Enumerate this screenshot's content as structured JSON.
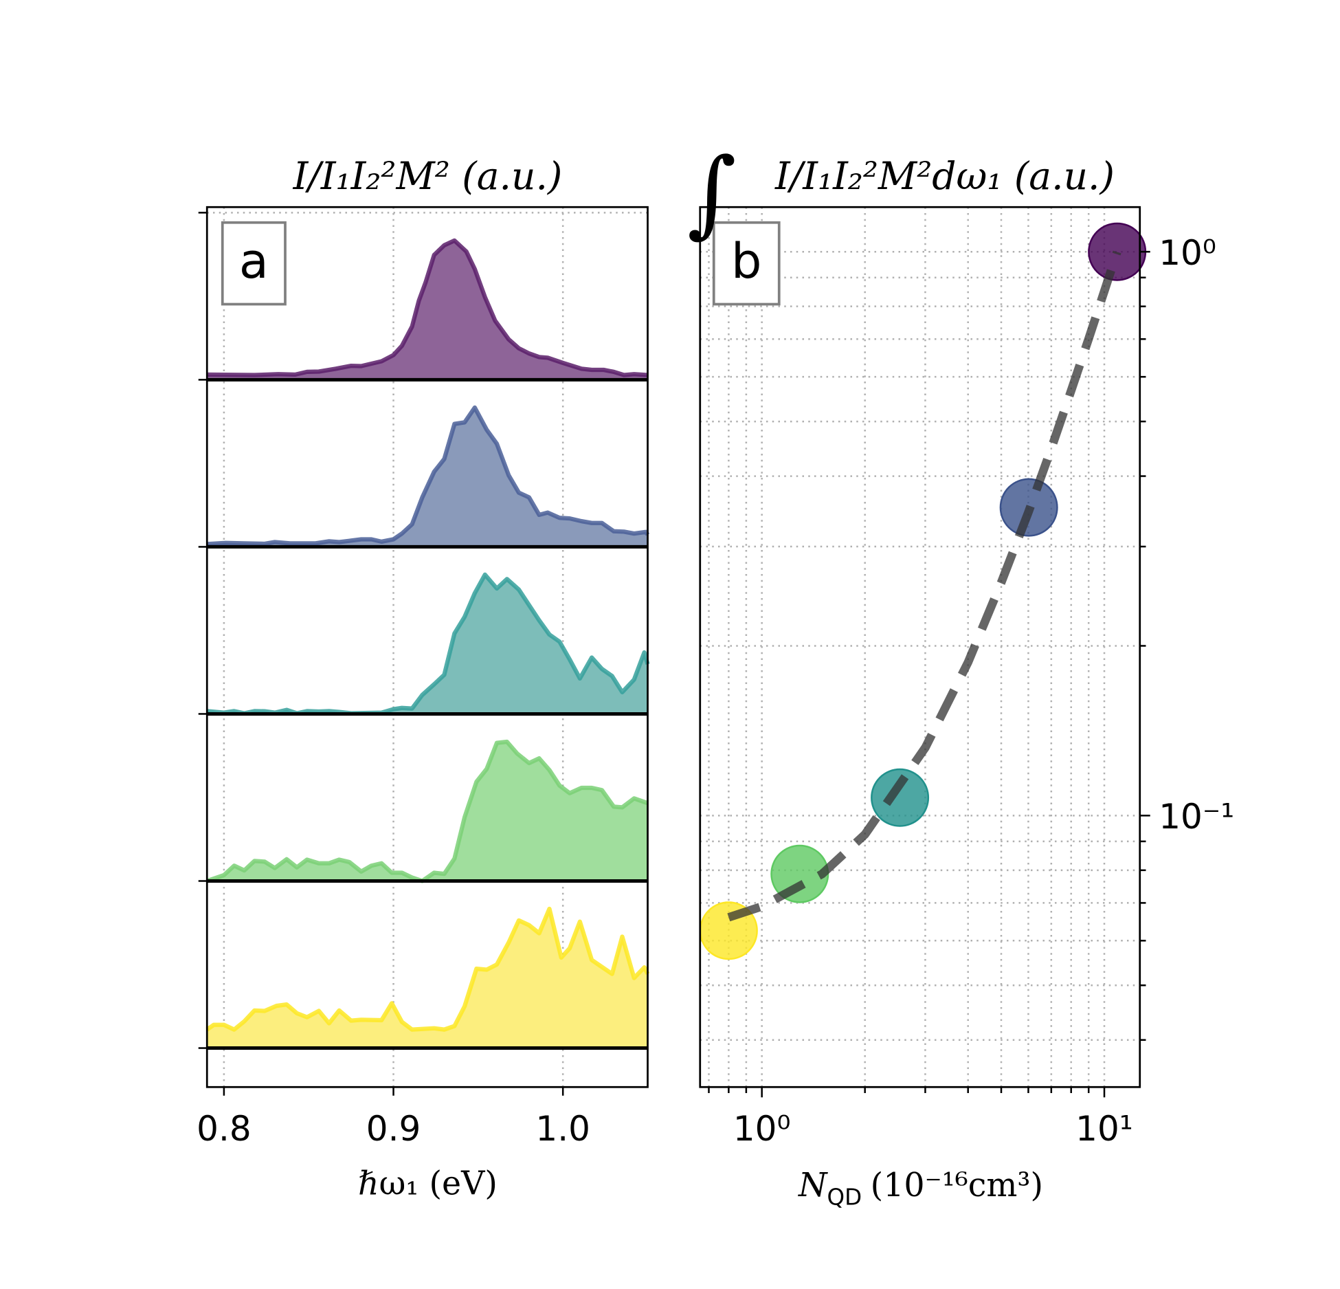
{
  "chart_data": [
    {
      "type": "area",
      "panel_label": "a",
      "title": "I/I₁I₂²M² (a.u.)",
      "xlabel": "ℏω₁ (eV)",
      "ylabel": "",
      "xlim": [
        0.79,
        1.05
      ],
      "ylim": [
        -0.28,
        6.04
      ],
      "xticks": [
        0.8,
        0.9,
        1.0
      ],
      "xtick_labels": [
        "0.8",
        "0.9",
        "1.0"
      ],
      "yticks": [
        0,
        1.2,
        2.4,
        3.6,
        4.8,
        6.0
      ],
      "grid": "dotted",
      "stack_offset": 1.2,
      "series": [
        {
          "color": "#5b1f6a",
          "fill": "#8e6498",
          "offset": 4.8,
          "x": [
            0.79,
            0.818,
            0.832,
            0.842,
            0.849,
            0.856,
            0.866,
            0.875,
            0.881,
            0.893,
            0.9,
            0.905,
            0.911,
            0.915,
            0.919,
            0.924,
            0.93,
            0.936,
            0.943,
            0.948,
            0.954,
            0.96,
            0.968,
            0.974,
            0.98,
            0.986,
            0.991,
            1.0,
            1.011,
            1.017,
            1.024,
            1.03,
            1.036,
            1.042,
            1.05
          ],
          "y": [
            0.037,
            0.034,
            0.04,
            0.037,
            0.057,
            0.059,
            0.079,
            0.1,
            0.098,
            0.133,
            0.177,
            0.244,
            0.382,
            0.567,
            0.7,
            0.896,
            0.966,
            1.0,
            0.921,
            0.795,
            0.593,
            0.424,
            0.29,
            0.226,
            0.189,
            0.163,
            0.158,
            0.121,
            0.079,
            0.071,
            0.071,
            0.057,
            0.034,
            0.04,
            0.034
          ]
        },
        {
          "color": "#4a5f98",
          "fill": "#8a9aba",
          "offset": 3.6,
          "x": [
            0.79,
            0.801,
            0.812,
            0.824,
            0.83,
            0.839,
            0.854,
            0.862,
            0.868,
            0.875,
            0.881,
            0.887,
            0.893,
            0.9,
            0.905,
            0.911,
            0.917,
            0.924,
            0.93,
            0.936,
            0.942,
            0.948,
            0.955,
            0.961,
            0.968,
            0.974,
            0.98,
            0.986,
            0.991,
            0.998,
            1.004,
            1.011,
            1.017,
            1.023,
            1.03,
            1.036,
            1.042,
            1.049,
            1.05
          ],
          "y": [
            0.02,
            0.028,
            0.025,
            0.022,
            0.034,
            0.025,
            0.025,
            0.04,
            0.034,
            0.045,
            0.054,
            0.054,
            0.037,
            0.054,
            0.095,
            0.162,
            0.355,
            0.539,
            0.631,
            0.883,
            0.894,
            1.0,
            0.841,
            0.74,
            0.514,
            0.389,
            0.355,
            0.23,
            0.246,
            0.208,
            0.204,
            0.184,
            0.171,
            0.171,
            0.112,
            0.109,
            0.095,
            0.107,
            0.087
          ]
        },
        {
          "color": "#35a09b",
          "fill": "#7dbdb9",
          "offset": 2.4,
          "x": [
            0.79,
            0.8,
            0.806,
            0.812,
            0.818,
            0.824,
            0.83,
            0.837,
            0.843,
            0.849,
            0.856,
            0.862,
            0.868,
            0.875,
            0.893,
            0.9,
            0.905,
            0.911,
            0.917,
            0.924,
            0.93,
            0.936,
            0.942,
            0.948,
            0.954,
            0.961,
            0.967,
            0.974,
            0.98,
            0.986,
            0.992,
            0.998,
            1.004,
            1.01,
            1.017,
            1.023,
            1.029,
            1.035,
            1.042,
            1.048,
            1.05
          ],
          "y": [
            0.02,
            0.009,
            0.02,
            0.005,
            0.02,
            0.019,
            0.009,
            0.029,
            0.005,
            0.02,
            0.017,
            0.02,
            0.014,
            0.005,
            0.009,
            0.034,
            0.043,
            0.039,
            0.136,
            0.213,
            0.281,
            0.578,
            0.697,
            0.867,
            1.0,
            0.901,
            0.969,
            0.893,
            0.782,
            0.672,
            0.57,
            0.519,
            0.391,
            0.255,
            0.405,
            0.323,
            0.272,
            0.156,
            0.247,
            0.442,
            0.357
          ]
        },
        {
          "color": "#7ad076",
          "fill": "#a0de9d",
          "offset": 1.2,
          "x": [
            0.79,
            0.8,
            0.806,
            0.812,
            0.818,
            0.824,
            0.83,
            0.837,
            0.843,
            0.849,
            0.856,
            0.862,
            0.868,
            0.874,
            0.881,
            0.887,
            0.893,
            0.899,
            0.905,
            0.911,
            0.917,
            0.924,
            0.93,
            0.936,
            0.942,
            0.949,
            0.955,
            0.961,
            0.967,
            0.973,
            0.98,
            0.986,
            0.992,
            0.998,
            1.004,
            1.011,
            1.017,
            1.023,
            1.03,
            1.035,
            1.042,
            1.05
          ],
          "y": [
            0.0,
            0.042,
            0.11,
            0.076,
            0.144,
            0.139,
            0.093,
            0.156,
            0.098,
            0.153,
            0.127,
            0.127,
            0.153,
            0.136,
            0.068,
            0.11,
            0.127,
            0.059,
            0.059,
            0.025,
            0.0,
            0.059,
            0.051,
            0.161,
            0.458,
            0.712,
            0.805,
            0.992,
            1.0,
            0.915,
            0.847,
            0.881,
            0.797,
            0.686,
            0.631,
            0.669,
            0.669,
            0.653,
            0.534,
            0.529,
            0.593,
            0.559
          ]
        },
        {
          "color": "#fde725",
          "fill": "#fcee7e",
          "offset": 0.0,
          "x": [
            0.79,
            0.794,
            0.8,
            0.806,
            0.812,
            0.818,
            0.824,
            0.831,
            0.837,
            0.843,
            0.849,
            0.856,
            0.862,
            0.868,
            0.875,
            0.881,
            0.893,
            0.899,
            0.905,
            0.911,
            0.917,
            0.924,
            0.93,
            0.936,
            0.942,
            0.949,
            0.955,
            0.961,
            0.968,
            0.974,
            0.98,
            0.986,
            0.992,
            0.999,
            1.004,
            1.01,
            1.017,
            1.023,
            1.029,
            1.035,
            1.042,
            1.048,
            1.05
          ],
          "y": [
            0.133,
            0.167,
            0.167,
            0.133,
            0.192,
            0.27,
            0.267,
            0.303,
            0.313,
            0.25,
            0.222,
            0.267,
            0.178,
            0.27,
            0.197,
            0.203,
            0.2,
            0.322,
            0.188,
            0.133,
            0.137,
            0.142,
            0.133,
            0.158,
            0.3,
            0.57,
            0.563,
            0.6,
            0.758,
            0.917,
            0.883,
            0.825,
            1.0,
            0.65,
            0.717,
            0.908,
            0.633,
            0.583,
            0.533,
            0.8,
            0.503,
            0.58,
            0.533
          ]
        }
      ]
    },
    {
      "type": "scatter",
      "panel_label": "b",
      "title": "∫ I/I₁I₂²M²dω₁ (a.u.)",
      "xlabel": "N_QD (10⁻¹⁶cm³)",
      "xlabel_main": "N",
      "xlabel_sub": "QD",
      "xlabel_rest": "(10⁻¹⁶cm³)",
      "ylabel": "",
      "xscale": "log",
      "yscale": "log",
      "xlim": [
        0.66,
        12.7
      ],
      "ylim": [
        0.033,
        1.2
      ],
      "xtick_labels": [
        "10⁰",
        "10¹"
      ],
      "ytick_labels": [
        "10⁰",
        "10⁻¹"
      ],
      "y_axis_side": "right",
      "grid": "dotted, major and minor",
      "points": [
        {
          "x": 0.8,
          "y": 0.0625,
          "color": "#fde725"
        },
        {
          "x": 1.29,
          "y": 0.0788,
          "color": "#5ec962"
        },
        {
          "x": 2.53,
          "y": 0.1076,
          "color": "#21918c"
        },
        {
          "x": 6.02,
          "y": 0.352,
          "color": "#3b528b"
        },
        {
          "x": 10.9,
          "y": 1.0,
          "color": "#440154"
        }
      ],
      "fit": {
        "style": "dashed",
        "color": "#333333",
        "x": [
          0.8,
          1.0,
          1.5,
          2.0,
          3.0,
          4.0,
          5.0,
          6.0,
          7.0,
          8.0,
          9.0,
          10.0,
          10.9
        ],
        "y": [
          0.066,
          0.069,
          0.0788,
          0.0926,
          0.132,
          0.187,
          0.259,
          0.345,
          0.448,
          0.567,
          0.701,
          0.851,
          0.999
        ]
      }
    }
  ]
}
